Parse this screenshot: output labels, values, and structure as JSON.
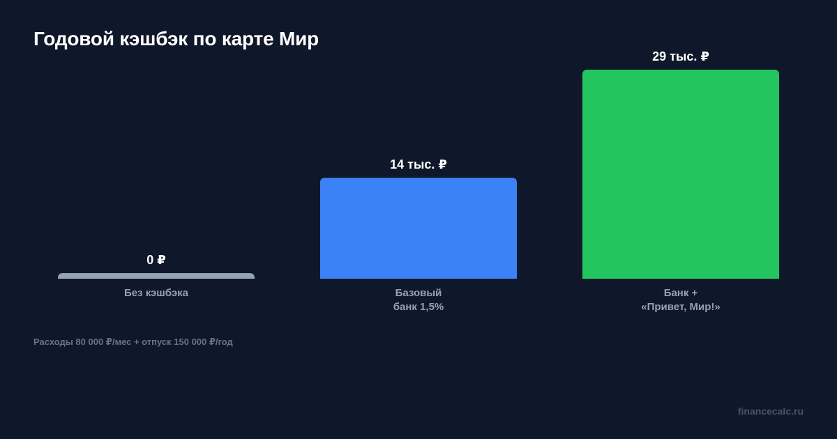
{
  "chart_data": {
    "type": "bar",
    "title": "Годовой кэшбэк по карте Мир",
    "categories": [
      [
        "Без кэшбэка"
      ],
      [
        "Базовый",
        "банк 1,5%"
      ],
      [
        "Банк +",
        "«Привет, Мир!»"
      ]
    ],
    "values": [
      0,
      14000,
      29000
    ],
    "value_labels": [
      "0 ₽",
      "14 тыс. ₽",
      "29 тыс. ₽"
    ],
    "colors": [
      "#94a3b8",
      "#3b82f6",
      "#22c55e"
    ],
    "ylim": [
      0,
      29000
    ],
    "grid": false,
    "legend": false
  },
  "footnote": "Расходы 80 000 ₽/мес + отпуск 150 000 ₽/год",
  "source": "financecalc.ru"
}
